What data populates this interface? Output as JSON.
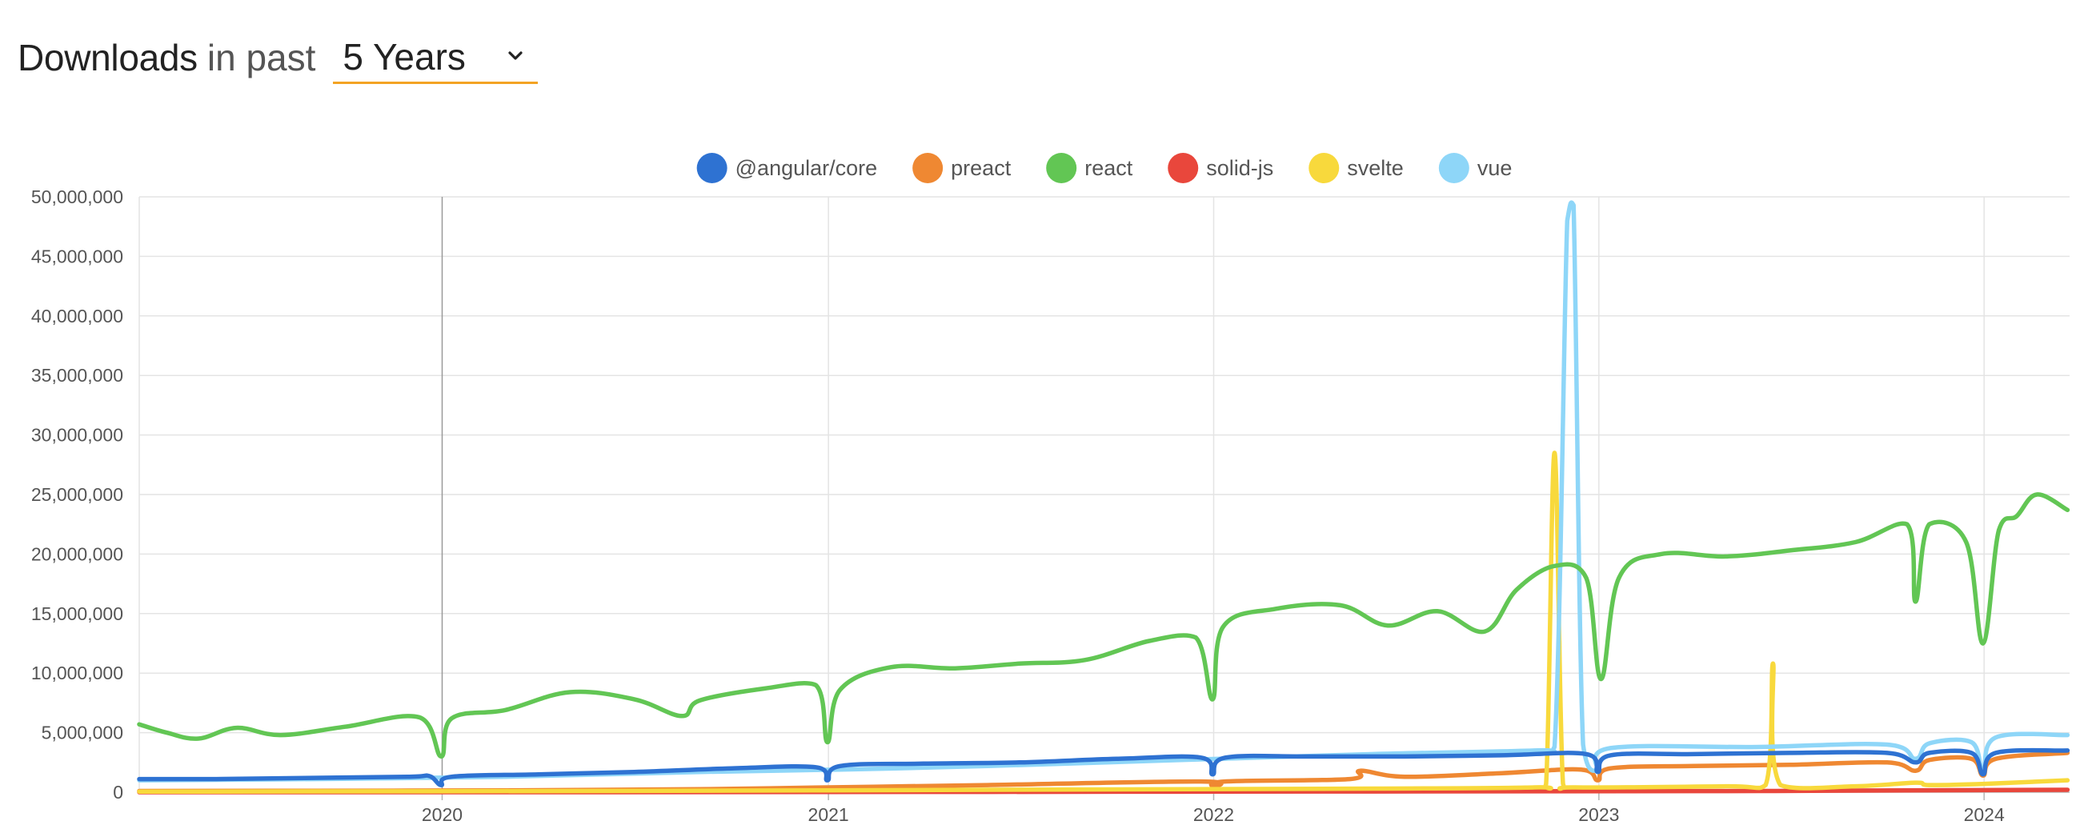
{
  "header": {
    "title_strong": "Downloads",
    "title_light": "in past",
    "range_value": "5 Years",
    "chevron_icon": "chevron-down-icon",
    "accent_color": "#f3a323"
  },
  "chart_data": {
    "type": "line",
    "title": "",
    "xlabel": "",
    "ylabel": "",
    "x_start": "2019-03",
    "x_end": "2024-03",
    "x_ticks": [
      "2020",
      "2021",
      "2022",
      "2023",
      "2024"
    ],
    "ylim": [
      0,
      50000000
    ],
    "y_ticks": [
      "0",
      "5,000,000",
      "10,000,000",
      "15,000,000",
      "20,000,000",
      "25,000,000",
      "30,000,000",
      "35,000,000",
      "40,000,000",
      "45,000,000",
      "50,000,000"
    ],
    "grid": true,
    "legend_position": "top-center",
    "series": [
      {
        "name": "@angular/core",
        "color": "#2e72d2",
        "points": [
          [
            "2019-03-20",
            1100000
          ],
          [
            "2019-06-01",
            1100000
          ],
          [
            "2019-09-01",
            1200000
          ],
          [
            "2019-12-01",
            1300000
          ],
          [
            "2019-12-20",
            1350000
          ],
          [
            "2019-12-31",
            600000
          ],
          [
            "2020-01-10",
            1300000
          ],
          [
            "2020-04-01",
            1500000
          ],
          [
            "2020-07-01",
            1700000
          ],
          [
            "2020-10-01",
            2000000
          ],
          [
            "2020-12-20",
            2100000
          ],
          [
            "2020-12-31",
            1000000
          ],
          [
            "2021-01-12",
            2200000
          ],
          [
            "2021-04-01",
            2400000
          ],
          [
            "2021-07-01",
            2500000
          ],
          [
            "2021-10-01",
            2800000
          ],
          [
            "2021-12-20",
            2900000
          ],
          [
            "2021-12-31",
            1500000
          ],
          [
            "2022-01-12",
            2900000
          ],
          [
            "2022-04-01",
            3000000
          ],
          [
            "2022-07-01",
            3000000
          ],
          [
            "2022-10-01",
            3100000
          ],
          [
            "2022-12-20",
            3200000
          ],
          [
            "2022-12-31",
            1700000
          ],
          [
            "2023-01-12",
            3100000
          ],
          [
            "2023-04-01",
            3200000
          ],
          [
            "2023-07-01",
            3300000
          ],
          [
            "2023-10-01",
            3300000
          ],
          [
            "2023-10-28",
            2500000
          ],
          [
            "2023-11-10",
            3300000
          ],
          [
            "2023-12-20",
            3300000
          ],
          [
            "2023-12-31",
            1500000
          ],
          [
            "2024-01-12",
            3300000
          ],
          [
            "2024-03-20",
            3500000
          ]
        ]
      },
      {
        "name": "preact",
        "color": "#ef8832",
        "points": [
          [
            "2019-03-20",
            100000
          ],
          [
            "2019-09-01",
            120000
          ],
          [
            "2020-03-01",
            150000
          ],
          [
            "2020-09-01",
            250000
          ],
          [
            "2021-01-01",
            400000
          ],
          [
            "2021-06-01",
            600000
          ],
          [
            "2021-12-20",
            900000
          ],
          [
            "2021-12-31",
            400000
          ],
          [
            "2022-01-12",
            900000
          ],
          [
            "2022-05-10",
            1100000
          ],
          [
            "2022-05-20",
            1800000
          ],
          [
            "2022-07-01",
            1300000
          ],
          [
            "2022-10-01",
            1600000
          ],
          [
            "2022-12-15",
            1900000
          ],
          [
            "2022-12-31",
            1000000
          ],
          [
            "2023-01-12",
            2000000
          ],
          [
            "2023-04-01",
            2200000
          ],
          [
            "2023-07-01",
            2300000
          ],
          [
            "2023-10-01",
            2500000
          ],
          [
            "2023-10-28",
            1800000
          ],
          [
            "2023-11-10",
            2700000
          ],
          [
            "2023-12-20",
            2800000
          ],
          [
            "2023-12-31",
            1400000
          ],
          [
            "2024-01-12",
            2800000
          ],
          [
            "2024-03-20",
            3300000
          ]
        ]
      },
      {
        "name": "react",
        "color": "#62c654",
        "points": [
          [
            "2019-03-20",
            5700000
          ],
          [
            "2019-04-15",
            5000000
          ],
          [
            "2019-05-15",
            4500000
          ],
          [
            "2019-06-20",
            5400000
          ],
          [
            "2019-08-01",
            4800000
          ],
          [
            "2019-10-01",
            5500000
          ],
          [
            "2019-12-10",
            6300000
          ],
          [
            "2019-12-31",
            3000000
          ],
          [
            "2020-01-10",
            6200000
          ],
          [
            "2020-03-01",
            6900000
          ],
          [
            "2020-05-01",
            8400000
          ],
          [
            "2020-07-01",
            7800000
          ],
          [
            "2020-08-15",
            6400000
          ],
          [
            "2020-09-01",
            7700000
          ],
          [
            "2020-11-01",
            8700000
          ],
          [
            "2020-12-20",
            9000000
          ],
          [
            "2020-12-31",
            4200000
          ],
          [
            "2021-01-12",
            8600000
          ],
          [
            "2021-03-01",
            10500000
          ],
          [
            "2021-05-01",
            10400000
          ],
          [
            "2021-07-01",
            10800000
          ],
          [
            "2021-09-01",
            11100000
          ],
          [
            "2021-11-01",
            12700000
          ],
          [
            "2021-12-15",
            13000000
          ],
          [
            "2021-12-31",
            7800000
          ],
          [
            "2022-01-10",
            13900000
          ],
          [
            "2022-03-01",
            15400000
          ],
          [
            "2022-05-01",
            15700000
          ],
          [
            "2022-06-15",
            14000000
          ],
          [
            "2022-08-01",
            15200000
          ],
          [
            "2022-09-15",
            13500000
          ],
          [
            "2022-10-15",
            17000000
          ],
          [
            "2022-11-20",
            19000000
          ],
          [
            "2022-12-20",
            18000000
          ],
          [
            "2023-01-03",
            9500000
          ],
          [
            "2023-01-20",
            18000000
          ],
          [
            "2023-03-01",
            20000000
          ],
          [
            "2023-05-01",
            19800000
          ],
          [
            "2023-07-01",
            20300000
          ],
          [
            "2023-09-01",
            21000000
          ],
          [
            "2023-10-20",
            22500000
          ],
          [
            "2023-10-28",
            16000000
          ],
          [
            "2023-11-10",
            22500000
          ],
          [
            "2023-12-15",
            21000000
          ],
          [
            "2023-12-31",
            12500000
          ],
          [
            "2024-01-15",
            22000000
          ],
          [
            "2024-02-01",
            23200000
          ],
          [
            "2024-02-20",
            25000000
          ],
          [
            "2024-03-20",
            23700000
          ]
        ]
      },
      {
        "name": "solid-js",
        "color": "#e9473c",
        "points": [
          [
            "2019-03-20",
            0
          ],
          [
            "2020-06-01",
            0
          ],
          [
            "2021-06-01",
            30000
          ],
          [
            "2022-06-01",
            60000
          ],
          [
            "2023-06-01",
            100000
          ],
          [
            "2024-03-20",
            200000
          ]
        ]
      },
      {
        "name": "svelte",
        "color": "#f8d93c",
        "points": [
          [
            "2019-03-20",
            50000
          ],
          [
            "2020-06-01",
            100000
          ],
          [
            "2021-06-01",
            200000
          ],
          [
            "2022-06-01",
            300000
          ],
          [
            "2022-11-01",
            400000
          ],
          [
            "2022-11-12",
            700000
          ],
          [
            "2022-11-20",
            28500000
          ],
          [
            "2022-11-28",
            700000
          ],
          [
            "2022-12-10",
            400000
          ],
          [
            "2023-05-01",
            500000
          ],
          [
            "2023-06-08",
            600000
          ],
          [
            "2023-06-15",
            10800000
          ],
          [
            "2023-06-22",
            600000
          ],
          [
            "2023-09-01",
            500000
          ],
          [
            "2023-10-28",
            800000
          ],
          [
            "2023-11-10",
            600000
          ],
          [
            "2024-01-01",
            700000
          ],
          [
            "2024-03-20",
            1000000
          ]
        ]
      },
      {
        "name": "vue",
        "color": "#8ed6f8",
        "points": [
          [
            "2019-03-20",
            1000000
          ],
          [
            "2019-09-01",
            1100000
          ],
          [
            "2020-03-01",
            1300000
          ],
          [
            "2020-09-01",
            1700000
          ],
          [
            "2021-01-12",
            1900000
          ],
          [
            "2021-06-01",
            2200000
          ],
          [
            "2021-12-01",
            2700000
          ],
          [
            "2022-06-01",
            3200000
          ],
          [
            "2022-11-01",
            3500000
          ],
          [
            "2022-11-20",
            3800000
          ],
          [
            "2022-12-02",
            48000000
          ],
          [
            "2022-12-08",
            49300000
          ],
          [
            "2022-12-17",
            4000000
          ],
          [
            "2022-12-31",
            1800000
          ],
          [
            "2023-01-12",
            3700000
          ],
          [
            "2023-06-01",
            3800000
          ],
          [
            "2023-10-01",
            4000000
          ],
          [
            "2023-10-28",
            2800000
          ],
          [
            "2023-11-10",
            4100000
          ],
          [
            "2023-12-20",
            4200000
          ],
          [
            "2023-12-31",
            1800000
          ],
          [
            "2024-01-12",
            4600000
          ],
          [
            "2024-03-20",
            4800000
          ]
        ]
      }
    ]
  }
}
